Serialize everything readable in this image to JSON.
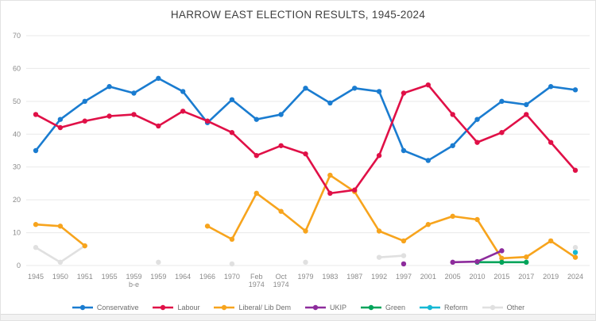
{
  "title": "HARROW EAST ELECTION RESULTS, 1945-2024",
  "chart_data": {
    "type": "line",
    "title": "HARROW EAST ELECTION RESULTS, 1945-2024",
    "xlabel": "",
    "ylabel": "",
    "ylim": [
      0,
      70
    ],
    "yticks": [
      0,
      10,
      20,
      30,
      40,
      50,
      60,
      70
    ],
    "grid": true,
    "legend_position": "bottom",
    "categories": [
      "1945",
      "1950",
      "1951",
      "1955",
      "1959\nb-e",
      "1959",
      "1964",
      "1966",
      "1970",
      "Feb\n1974",
      "Oct\n1974",
      "1979",
      "1983",
      "1987",
      "1992",
      "1997",
      "2001",
      "2005",
      "2010",
      "2015",
      "2017",
      "2019",
      "2024"
    ],
    "series": [
      {
        "name": "Conservative",
        "color": "#1a7cd0",
        "values": [
          35,
          44.5,
          50,
          54.5,
          52.5,
          57,
          53,
          43.5,
          50.5,
          44.5,
          46,
          54,
          49.5,
          54,
          53,
          35,
          32,
          36.5,
          44.5,
          50,
          49,
          54.5,
          53.5
        ]
      },
      {
        "name": "Labour",
        "color": "#e01047",
        "values": [
          46,
          42,
          44,
          45.5,
          46,
          42.5,
          47,
          44,
          40.5,
          33.5,
          36.5,
          34,
          22,
          23,
          33.5,
          52.5,
          55,
          46,
          37.5,
          40.5,
          46,
          37.5,
          29
        ]
      },
      {
        "name": "Liberal/ Lib Dem",
        "color": "#f7a41d",
        "values": [
          12.5,
          12,
          6,
          null,
          null,
          null,
          null,
          12,
          8,
          22,
          16.5,
          10.5,
          27.5,
          22.5,
          10.5,
          7.5,
          12.5,
          15,
          14,
          2.2,
          2.6,
          7.5,
          2.5
        ]
      },
      {
        "name": "UKIP",
        "color": "#8d2c9c",
        "values": [
          null,
          null,
          null,
          null,
          null,
          null,
          null,
          null,
          null,
          null,
          null,
          null,
          null,
          null,
          null,
          0.5,
          null,
          1,
          1.2,
          4.5,
          null,
          null,
          null
        ]
      },
      {
        "name": "Green",
        "color": "#00a45a",
        "values": [
          null,
          null,
          null,
          null,
          null,
          null,
          null,
          null,
          null,
          null,
          null,
          null,
          null,
          null,
          null,
          null,
          null,
          null,
          1,
          1,
          1,
          null,
          null
        ]
      },
      {
        "name": "Reform",
        "color": "#15b8d4",
        "values": [
          null,
          null,
          null,
          null,
          null,
          null,
          null,
          null,
          null,
          null,
          null,
          null,
          null,
          null,
          null,
          null,
          null,
          null,
          null,
          null,
          null,
          null,
          4
        ]
      },
      {
        "name": "Other",
        "color": "#e0e0e0",
        "values": [
          5.5,
          1,
          6,
          null,
          null,
          1,
          null,
          null,
          0.5,
          null,
          null,
          1,
          null,
          null,
          2.5,
          3,
          null,
          null,
          null,
          null,
          null,
          null,
          5.5
        ]
      }
    ],
    "draw_order": [
      6,
      2,
      4,
      3,
      5,
      0,
      1
    ]
  }
}
